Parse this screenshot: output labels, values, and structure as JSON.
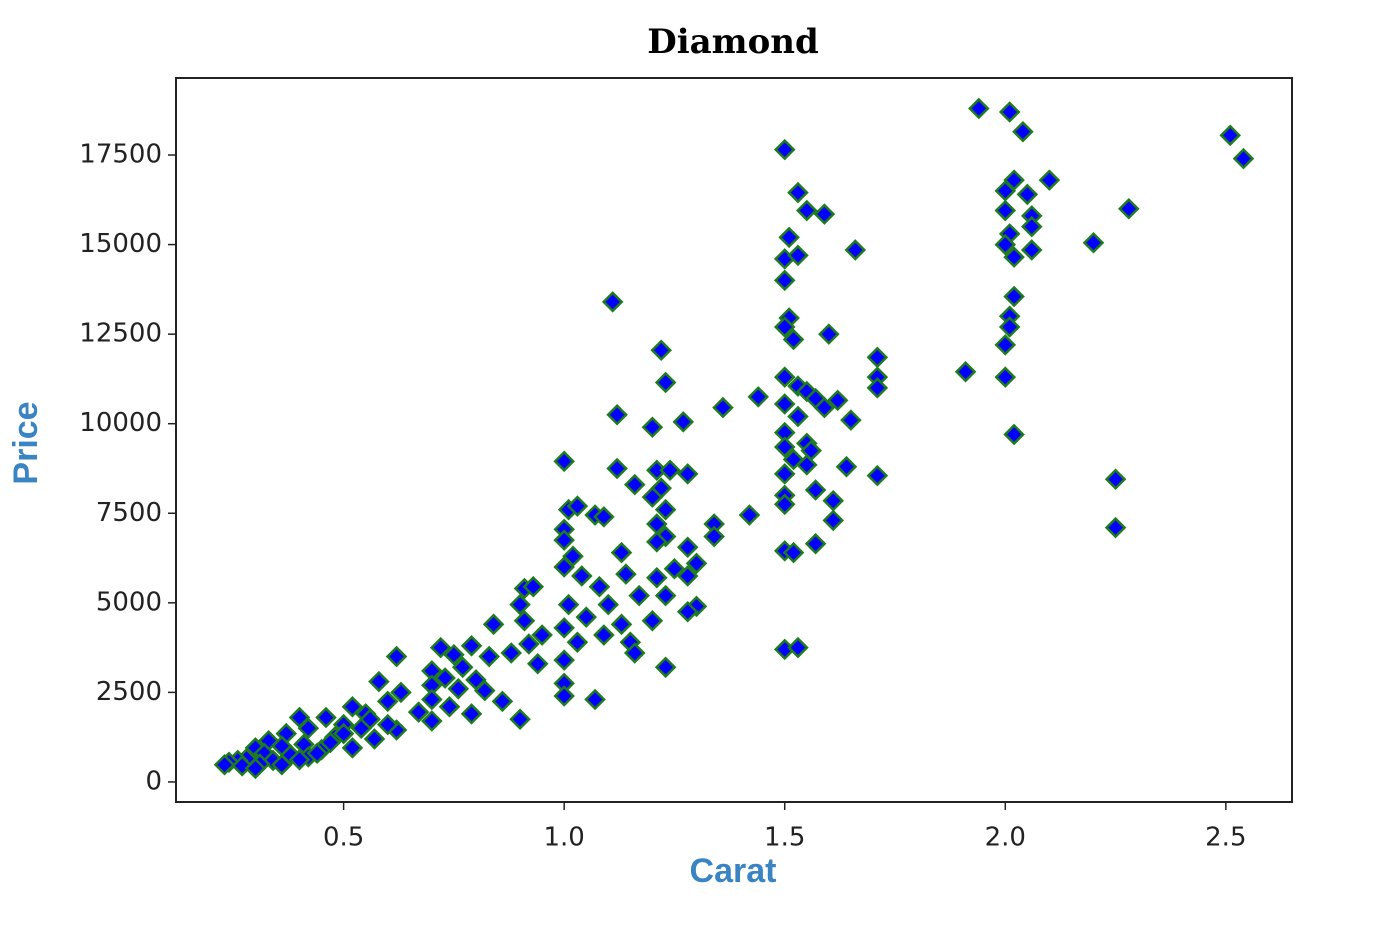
{
  "chart_data": {
    "type": "scatter",
    "title": "Diamond",
    "xlabel": "Carat",
    "ylabel": "Price",
    "color": "#0000ff",
    "edge_color": "#1e7b1e",
    "label_color": "#3a84c4",
    "marker": "diamond",
    "xlim": [
      0.12,
      2.65
    ],
    "ylim": [
      -560,
      19650
    ],
    "xticks": [
      0.5,
      {
        "value": 1,
        "label": "1.0"
      },
      1.5,
      {
        "value": 2,
        "label": "2.0"
      },
      2.5
    ],
    "yticks": [
      0,
      2500,
      5000,
      7500,
      10000,
      12500,
      15000,
      17500
    ],
    "x": [
      1.94,
      2.01,
      2.04,
      1.5,
      2.51,
      2.54,
      1.53,
      2.02,
      2.0,
      2.05,
      2.1,
      2.28,
      1.55,
      1.59,
      2.0,
      2.06,
      2.06,
      2.01,
      1.51,
      2.2,
      2.0,
      1.66,
      2.06,
      1.5,
      1.53,
      2.02,
      1.5,
      2.02,
      1.11,
      2.01,
      1.51,
      1.5,
      2.01,
      1.52,
      1.6,
      2.0,
      1.22,
      1.71,
      1.91,
      1.5,
      1.71,
      2.0,
      1.23,
      1.53,
      1.55,
      1.71,
      1.57,
      1.62,
      1.44,
      1.36,
      1.5,
      1.59,
      1.12,
      1.53,
      1.65,
      1.27,
      1.2,
      1.5,
      2.02,
      1.55,
      1.5,
      1.52,
      1.56,
      1.0,
      1.64,
      1.12,
      1.21,
      1.24,
      1.28,
      1.5,
      1.71,
      1.55,
      2.25,
      1.16,
      1.22,
      1.57,
      1.5,
      1.2,
      1.61,
      1.5,
      1.23,
      1.01,
      1.03,
      1.07,
      1.09,
      1.42,
      1.61,
      1.21,
      1.34,
      2.25,
      1.0,
      1.23,
      1.34,
      1.0,
      1.21,
      1.57,
      1.28,
      1.5,
      1.52,
      1.13,
      1.02,
      1.3,
      1.25,
      1.0,
      1.14,
      1.04,
      1.21,
      1.28,
      1.08,
      0.91,
      0.93,
      1.17,
      1.23,
      1.3,
      1.28,
      1.01,
      1.1,
      0.9,
      1.2,
      1.13,
      1.05,
      0.84,
      0.91,
      1.0,
      1.09,
      0.95,
      1.15,
      0.92,
      0.79,
      0.72,
      1.03,
      1.5,
      1.53,
      1.16,
      0.88,
      0.75,
      0.83,
      0.62,
      1.0,
      0.94,
      1.23,
      0.77,
      0.7,
      0.73,
      0.8,
      0.58,
      0.7,
      1.0,
      0.76,
      0.63,
      0.82,
      1.0,
      1.07,
      0.7,
      0.86,
      0.6,
      0.74,
      0.52,
      0.79,
      0.67,
      0.55,
      0.7,
      0.9,
      0.46,
      0.4,
      0.62,
      0.5,
      0.54,
      0.42,
      0.37,
      0.57,
      0.48,
      0.33,
      0.41,
      0.36,
      0.52,
      0.3,
      0.45,
      0.32,
      0.38,
      0.28,
      0.42,
      0.26,
      0.34,
      0.24,
      0.31,
      0.23,
      0.27,
      0.36,
      0.3,
      0.4,
      0.44,
      0.47,
      0.5,
      0.56,
      0.6
    ],
    "values": [
      18800,
      18700,
      18150,
      17650,
      18050,
      17400,
      16450,
      16800,
      16500,
      16400,
      16800,
      16000,
      15950,
      15850,
      15950,
      15800,
      15500,
      15300,
      15200,
      15050,
      15000,
      14850,
      14850,
      14600,
      14700,
      14650,
      14000,
      13550,
      13400,
      13000,
      12950,
      12700,
      12700,
      12350,
      12500,
      12200,
      12050,
      11850,
      11450,
      11300,
      11300,
      11300,
      11150,
      11050,
      10900,
      11000,
      10700,
      10650,
      10750,
      10450,
      10550,
      10450,
      10250,
      10200,
      10100,
      10050,
      9900,
      9750,
      9700,
      9450,
      9350,
      9000,
      9250,
      8950,
      8800,
      8750,
      8700,
      8700,
      8600,
      8600,
      8550,
      8850,
      8450,
      8300,
      8200,
      8150,
      8000,
      7950,
      7850,
      7750,
      7600,
      7600,
      7700,
      7450,
      7400,
      7450,
      7300,
      7200,
      7200,
      7100,
      7050,
      6850,
      6850,
      6750,
      6700,
      6650,
      6550,
      6450,
      6400,
      6400,
      6300,
      6100,
      5950,
      6000,
      5800,
      5750,
      5700,
      5750,
      5450,
      5400,
      5450,
      5200,
      5200,
      4900,
      4750,
      4950,
      4950,
      4950,
      4500,
      4400,
      4600,
      4400,
      4500,
      4300,
      4100,
      4100,
      3900,
      3850,
      3800,
      3750,
      3900,
      3700,
      3750,
      3600,
      3600,
      3550,
      3500,
      3500,
      3400,
      3300,
      3200,
      3200,
      3100,
      2900,
      2850,
      2800,
      2700,
      2750,
      2600,
      2500,
      2550,
      2400,
      2300,
      2300,
      2250,
      2250,
      2100,
      2100,
      1900,
      1950,
      1900,
      1700,
      1750,
      1800,
      1800,
      1450,
      1600,
      1500,
      1500,
      1350,
      1200,
      1250,
      1150,
      1050,
      1000,
      950,
      950,
      900,
      800,
      750,
      650,
      700,
      600,
      600,
      550,
      500,
      480,
      450,
      480,
      380,
      620,
      800,
      1100,
      1350,
      1750,
      1600
    ]
  }
}
